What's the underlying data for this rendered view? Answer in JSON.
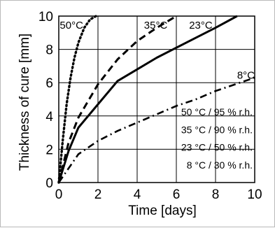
{
  "chart_data": {
    "type": "line",
    "title": "",
    "xlabel": "Time [days]",
    "ylabel": "Thickness of cure [mm]",
    "xlim": [
      0,
      10
    ],
    "ylim": [
      0,
      10
    ],
    "xticks": [
      0,
      2,
      4,
      6,
      8,
      10
    ],
    "yticks": [
      0,
      2,
      4,
      6,
      8,
      10
    ],
    "grid": true,
    "legend_placement": "bottom-right",
    "legend": [
      "50 °C / 95 % r.h.",
      "35 °C / 90 % r.h.",
      "23 °C / 50 % r.h.",
      "8 °C / 30 % r.h."
    ],
    "series": [
      {
        "name": "50°C",
        "style": "dotted",
        "x": [
          0,
          0.2,
          0.4,
          0.6,
          0.8,
          1.0,
          1.3,
          1.6,
          1.9
        ],
        "y": [
          0,
          2.5,
          4.7,
          6.3,
          7.5,
          8.4,
          9.3,
          9.8,
          10
        ]
      },
      {
        "name": "35°C",
        "style": "dashed",
        "x": [
          0,
          0.5,
          1,
          2,
          3,
          4,
          5,
          6
        ],
        "y": [
          0,
          2.4,
          3.9,
          5.9,
          7.4,
          8.5,
          9.3,
          10
        ]
      },
      {
        "name": "23°C",
        "style": "solid",
        "x": [
          0,
          0.5,
          1,
          2,
          3,
          4,
          5,
          6,
          7,
          8,
          9.1
        ],
        "y": [
          0,
          1.9,
          3.3,
          4.7,
          6.1,
          6.8,
          7.5,
          8.1,
          8.7,
          9.3,
          10
        ]
      },
      {
        "name": "8°C",
        "style": "dashdot",
        "x": [
          0,
          1,
          2,
          3,
          4,
          5,
          6,
          7,
          8,
          9,
          10
        ],
        "y": [
          0,
          1.7,
          2.5,
          3.1,
          3.6,
          4.1,
          4.6,
          5.0,
          5.5,
          5.9,
          6.3
        ]
      }
    ],
    "annotations": [
      "50°C",
      "35°C",
      "23°C",
      "8°C"
    ]
  }
}
